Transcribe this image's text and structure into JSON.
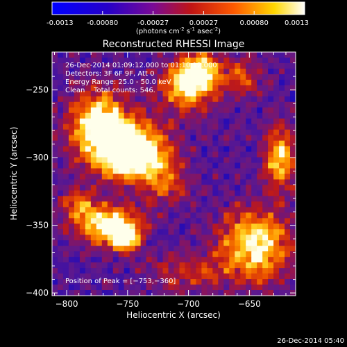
{
  "colorbar": {
    "ticks": [
      "-0.0013",
      "-0.00080",
      "-0.00027",
      "0.00027",
      "0.00080",
      "0.0013"
    ],
    "min": -0.0013,
    "max": 0.0013,
    "unit_parts": [
      "(photons cm",
      "-2",
      " s",
      "-1",
      " asec",
      "-2",
      ")"
    ]
  },
  "chart_data": {
    "type": "heatmap",
    "title": "Reconstructed RHESSI Image",
    "xlabel": "Heliocentric X (arcsec)",
    "ylabel": "Heliocentric Y (arcsec)",
    "xlim": [
      -812,
      -612
    ],
    "ylim": [
      -402,
      -222
    ],
    "x_ticks": [
      -800,
      -750,
      -700,
      -650
    ],
    "y_ticks": [
      -250,
      -300,
      -350,
      -400
    ],
    "x_tick_labels": [
      "−800",
      "−750",
      "−700",
      "−650"
    ],
    "y_tick_labels": [
      "−250",
      "−300",
      "−350",
      "−400"
    ],
    "colormap": "hot",
    "info_lines": [
      "26-Dec-2014 01:09:12.000 to 01:10:12.000",
      "Detectors: 3F 6F 9F, Att 0",
      "Energy Range: 25.0 - 50.0 keV",
      "Clean    Total counts: 546."
    ],
    "peak_label": "Position of Peak = [−753,−360]",
    "peak_position": [
      -753,
      -360
    ],
    "sources": [
      {
        "x": -755,
        "y": -290,
        "sx": 24,
        "sy": 16,
        "a": 0.75
      },
      {
        "x": -775,
        "y": -270,
        "sx": 15,
        "sy": 15,
        "a": 0.6
      },
      {
        "x": -745,
        "y": -300,
        "sx": 18,
        "sy": 10,
        "a": 0.65
      },
      {
        "x": -700,
        "y": -247,
        "sx": 16,
        "sy": 12,
        "a": 0.7
      },
      {
        "x": -690,
        "y": -235,
        "sx": 12,
        "sy": 9,
        "a": 0.55
      },
      {
        "x": -655,
        "y": -240,
        "sx": 10,
        "sy": 10,
        "a": 0.35
      },
      {
        "x": -765,
        "y": -350,
        "sx": 18,
        "sy": 10,
        "a": 0.8
      },
      {
        "x": -752,
        "y": -360,
        "sx": 7,
        "sy": 6,
        "a": 0.85
      },
      {
        "x": -790,
        "y": -335,
        "sx": 10,
        "sy": 8,
        "a": 0.45
      },
      {
        "x": -645,
        "y": -365,
        "sx": 20,
        "sy": 18,
        "a": 0.75
      },
      {
        "x": -625,
        "y": -300,
        "sx": 9,
        "sy": 16,
        "a": 0.65
      },
      {
        "x": -720,
        "y": -320,
        "sx": 14,
        "sy": 10,
        "a": 0.35
      },
      {
        "x": -700,
        "y": -385,
        "sx": 22,
        "sy": 10,
        "a": 0.3
      }
    ]
  },
  "footer": {
    "timestamp": "26-Dec-2014 05:40"
  }
}
